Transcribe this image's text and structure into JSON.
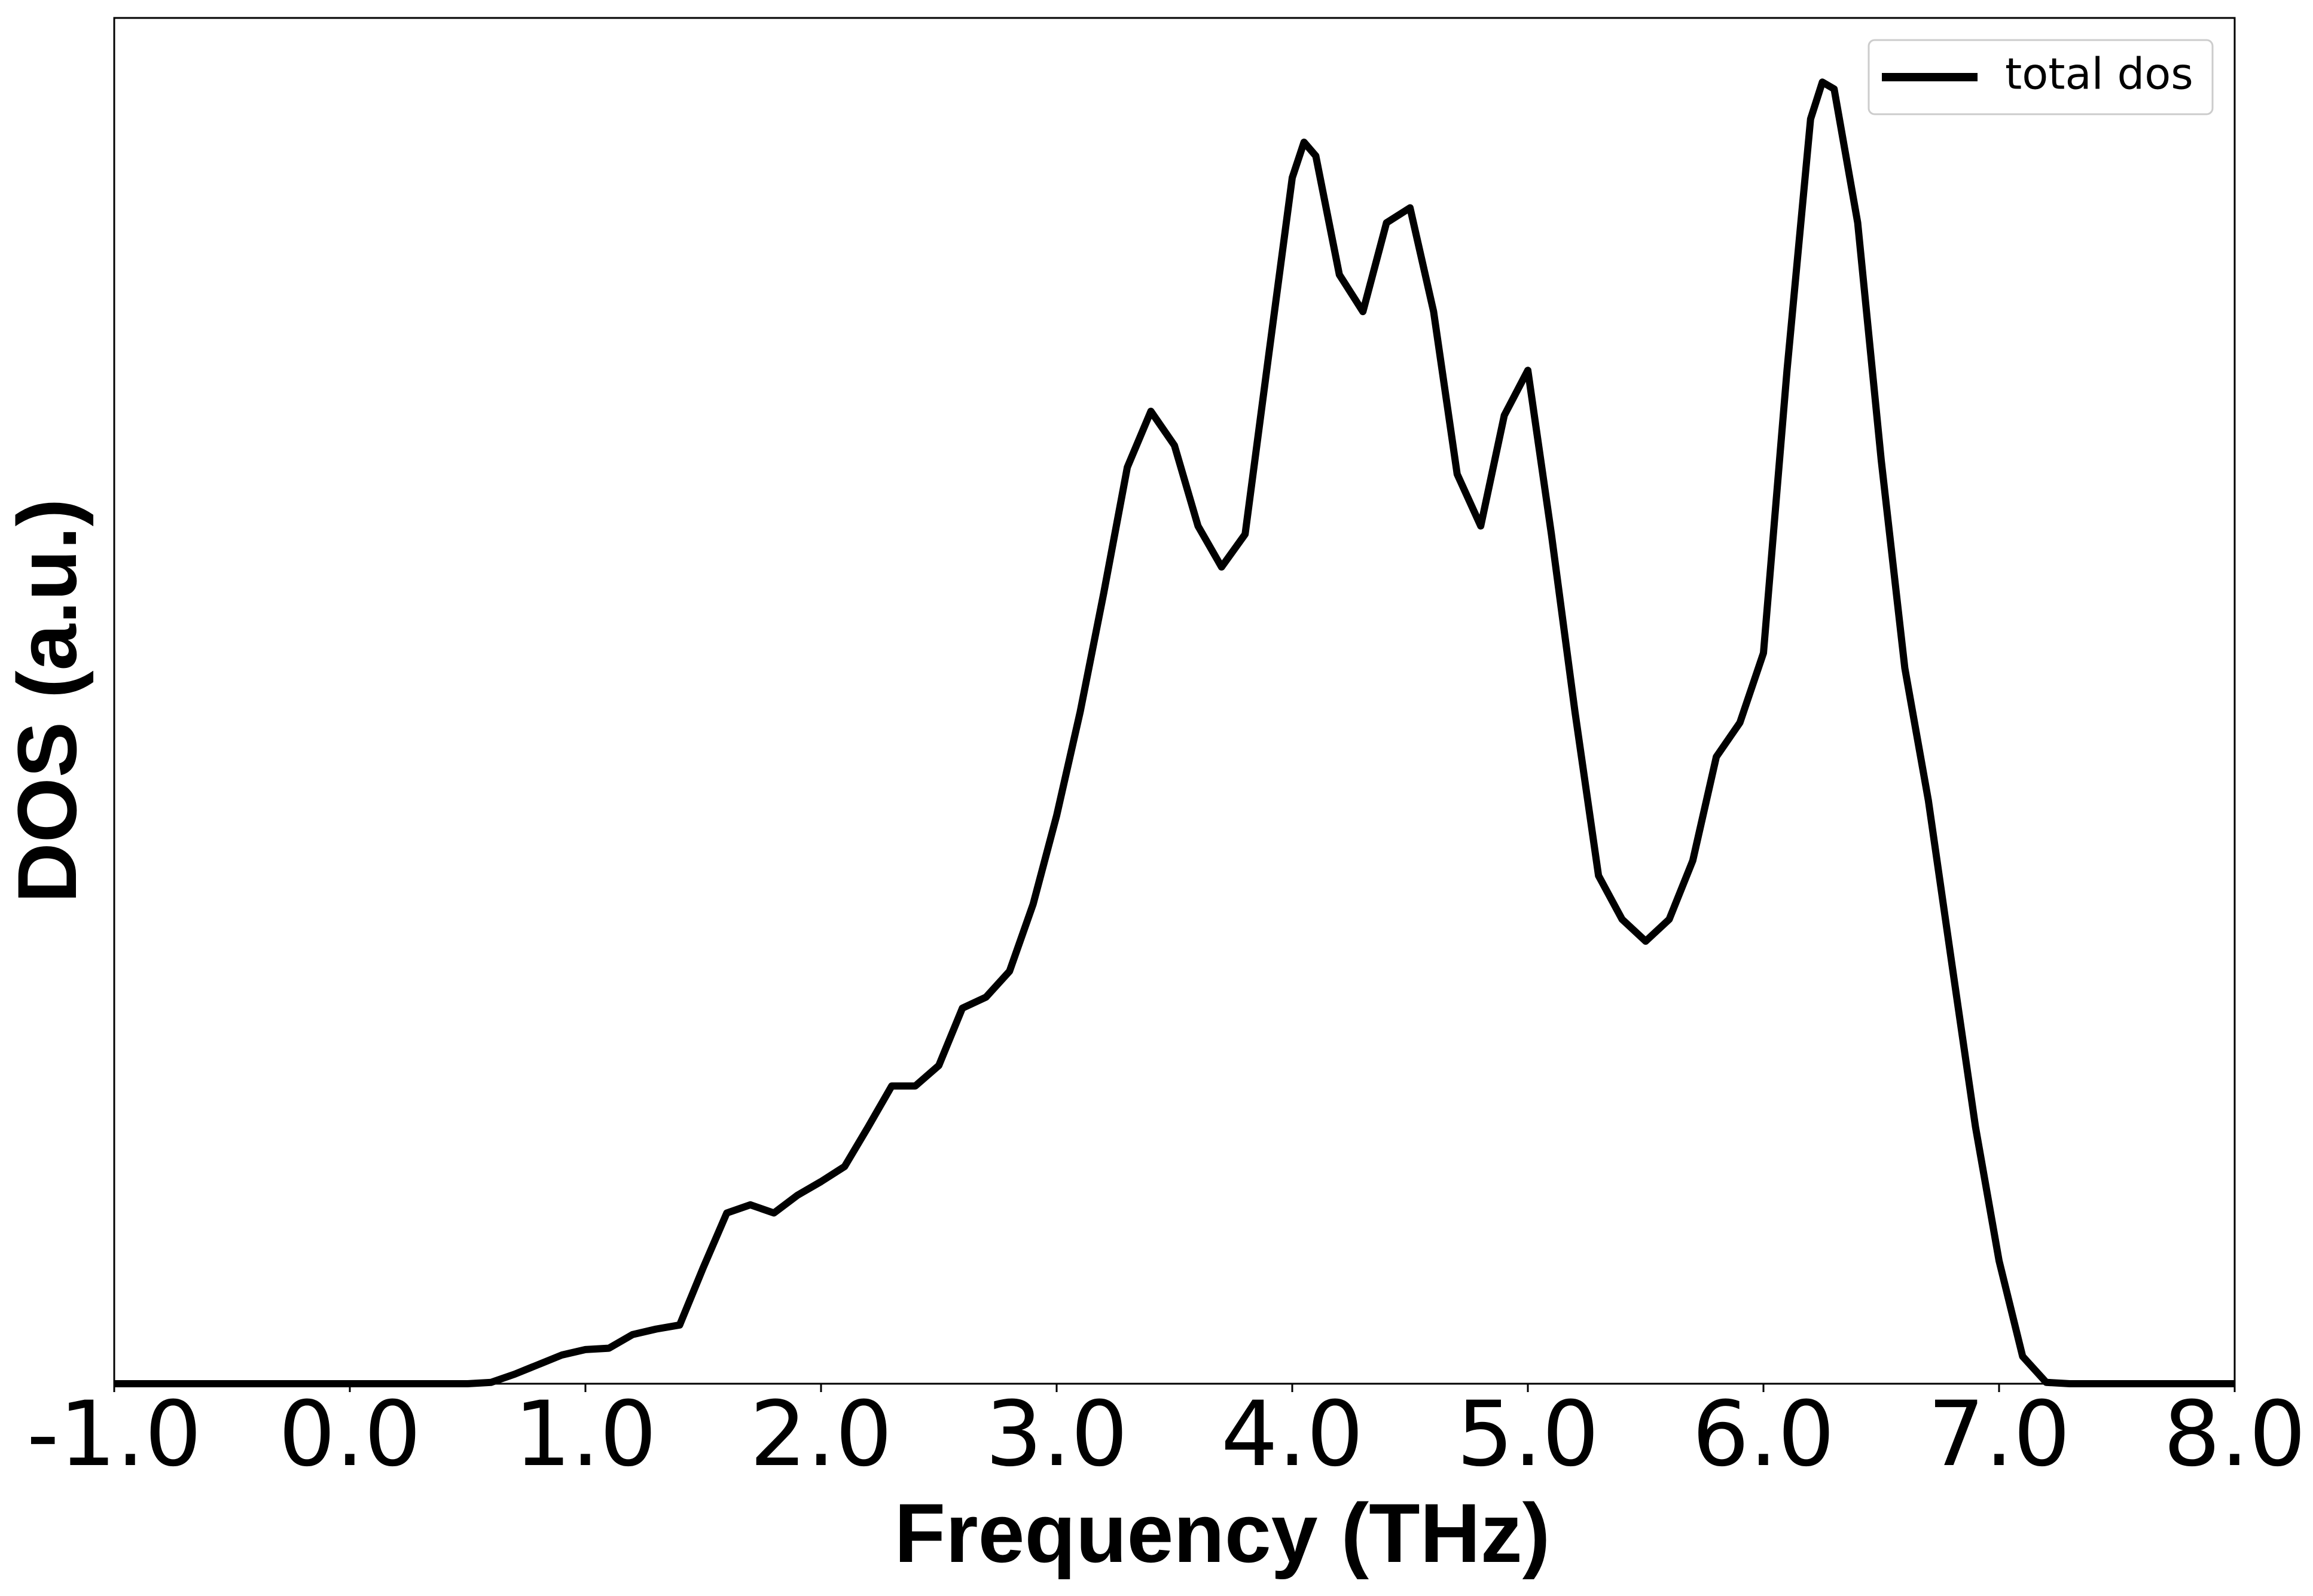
{
  "chart_data": {
    "type": "line",
    "xlabel": "Frequency (THz)",
    "ylabel": "DOS (a.u.)",
    "x": [
      -1.0,
      0.0,
      0.5,
      0.6,
      0.7,
      0.8,
      0.9,
      1.0,
      1.1,
      1.2,
      1.3,
      1.4,
      1.5,
      1.6,
      1.7,
      1.8,
      1.9,
      2.0,
      2.1,
      2.2,
      2.3,
      2.4,
      2.5,
      2.6,
      2.7,
      2.8,
      2.9,
      3.0,
      3.1,
      3.2,
      3.3,
      3.4,
      3.5,
      3.6,
      3.7,
      3.8,
      3.9,
      4.0,
      4.05,
      4.1,
      4.2,
      4.3,
      4.4,
      4.5,
      4.6,
      4.7,
      4.8,
      4.9,
      5.0,
      5.1,
      5.2,
      5.3,
      5.4,
      5.5,
      5.6,
      5.7,
      5.8,
      5.9,
      6.0,
      6.1,
      6.2,
      6.25,
      6.3,
      6.4,
      6.5,
      6.6,
      6.7,
      6.8,
      6.9,
      7.0,
      7.1,
      7.2,
      7.3,
      8.0
    ],
    "series": [
      {
        "name": "total dos",
        "color": "#000000",
        "values": [
          0,
          0,
          0,
          0.001,
          0.007,
          0.014,
          0.021,
          0.025,
          0.026,
          0.036,
          0.04,
          0.043,
          0.085,
          0.125,
          0.131,
          0.125,
          0.138,
          0.148,
          0.159,
          0.188,
          0.218,
          0.218,
          0.233,
          0.275,
          0.283,
          0.302,
          0.351,
          0.416,
          0.492,
          0.579,
          0.671,
          0.712,
          0.687,
          0.628,
          0.598,
          0.622,
          0.753,
          0.883,
          0.909,
          0.899,
          0.812,
          0.785,
          0.85,
          0.861,
          0.785,
          0.666,
          0.628,
          0.709,
          0.742,
          0.622,
          0.492,
          0.372,
          0.34,
          0.324,
          0.34,
          0.383,
          0.459,
          0.484,
          0.535,
          0.742,
          0.926,
          0.953,
          0.948,
          0.85,
          0.676,
          0.524,
          0.427,
          0.307,
          0.188,
          0.09,
          0.02,
          0.001,
          0,
          0
        ]
      }
    ],
    "xlim": [
      -1.0,
      8.0
    ],
    "ylim": [
      0,
      1
    ],
    "xticks": [
      {
        "value": -1,
        "label": "-1.0"
      },
      {
        "value": 0,
        "label": "0.0"
      },
      {
        "value": 1,
        "label": "1.0"
      },
      {
        "value": 2,
        "label": "2.0"
      },
      {
        "value": 3,
        "label": "3.0"
      },
      {
        "value": 4,
        "label": "4.0"
      },
      {
        "value": 5,
        "label": "5.0"
      },
      {
        "value": 6,
        "label": "6.0"
      },
      {
        "value": 7,
        "label": "7.0"
      },
      {
        "value": 8,
        "label": "8.0"
      }
    ],
    "legend": "upper right"
  }
}
